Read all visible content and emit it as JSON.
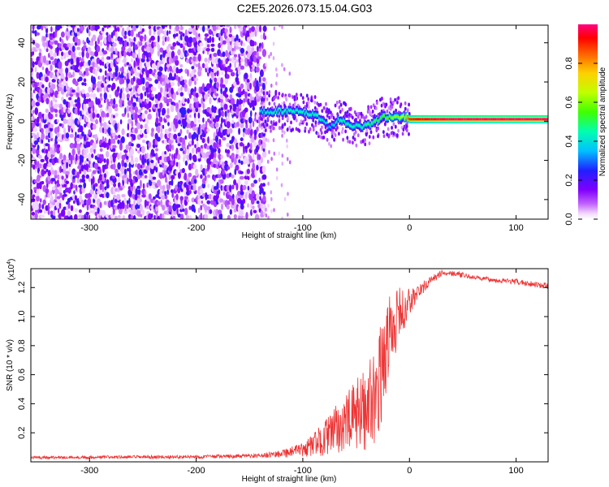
{
  "title": "C2E5.2026.073.15.04.G03",
  "chart_data": [
    {
      "type": "heatmap",
      "xlabel": "Height of straight line (km)",
      "ylabel": "Frequency (Hz)",
      "xlim": [
        -355,
        130
      ],
      "ylim": [
        -50,
        49
      ],
      "xticks": [
        -300,
        -200,
        -100,
        0,
        100
      ],
      "yticks": [
        -40,
        -20,
        0,
        20,
        40
      ],
      "colorbar": {
        "label": "Normalized spectral amplitude",
        "range": [
          0,
          1
        ],
        "ticks": [
          0.0,
          0.2,
          0.4,
          0.6,
          0.8
        ]
      },
      "noise_region_x": [
        -355,
        -135
      ],
      "tone_track": {
        "x": [
          -140,
          -125,
          -110,
          -95,
          -85,
          -75,
          -65,
          -55,
          -45,
          -35,
          -25,
          -15,
          -5,
          0,
          10,
          40,
          80,
          130
        ],
        "frequency": [
          5,
          5,
          5,
          4,
          2,
          -3,
          1,
          -2,
          -3,
          -1,
          2,
          2,
          2,
          1,
          1,
          1,
          1,
          1
        ],
        "amplitude": [
          0.4,
          0.45,
          0.45,
          0.45,
          0.45,
          0.35,
          0.45,
          0.45,
          0.45,
          0.5,
          0.55,
          0.6,
          0.65,
          0.9,
          0.95,
          1.0,
          1.0,
          1.0
        ]
      },
      "blob_near": {
        "x": -213,
        "frequency": 2
      }
    },
    {
      "type": "line",
      "xlabel": "Height of straight line (km)",
      "ylabel": "SNR (10 * v/v)",
      "y_multiplier": "(x10",
      "y_multiplier_exp": "4",
      "y_multiplier_close": ")",
      "xlim": [
        -355,
        130
      ],
      "ylim": [
        0,
        1.33
      ],
      "xticks": [
        -300,
        -200,
        -100,
        0,
        100
      ],
      "yticks": [
        0.2,
        0.4,
        0.6,
        0.8,
        1.0,
        1.2
      ],
      "yticklabels": [
        "0.2",
        "0.4",
        "0.6",
        "0.8",
        "1.0",
        "1.2"
      ],
      "color": "#ee3333",
      "series": [
        {
          "x": [
            -355,
            -200,
            -140,
            -120,
            -100,
            -90,
            -80,
            -70,
            -60,
            -50,
            -40,
            -30,
            -25,
            -20,
            -15,
            -10,
            0,
            10,
            20,
            30,
            40,
            60,
            80,
            100,
            130
          ],
          "values": [
            0.03,
            0.035,
            0.04,
            0.06,
            0.08,
            0.12,
            0.16,
            0.22,
            0.26,
            0.32,
            0.38,
            0.5,
            0.65,
            0.85,
            0.95,
            1.0,
            1.1,
            1.18,
            1.25,
            1.3,
            1.3,
            1.27,
            1.25,
            1.24,
            1.21
          ],
          "noise_amplitude": [
            0.01,
            0.012,
            0.015,
            0.03,
            0.05,
            0.08,
            0.12,
            0.16,
            0.2,
            0.25,
            0.3,
            0.35,
            0.35,
            0.3,
            0.25,
            0.2,
            0.1,
            0.05,
            0.03,
            0.02,
            0.02,
            0.015,
            0.015,
            0.02,
            0.02
          ]
        }
      ]
    }
  ]
}
